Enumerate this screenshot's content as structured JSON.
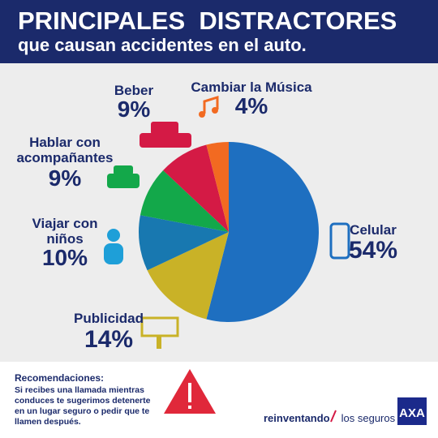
{
  "chart_data": {
    "type": "pie",
    "title": "PRINCIPALES  DISTRACTORES",
    "subtitle": "que causan accidentes en el auto.",
    "categories": [
      "Celular",
      "Publicidad",
      "Viajar con niños",
      "Hablar con acompañantes",
      "Beber",
      "Cambiar la Música"
    ],
    "values": [
      54,
      14,
      10,
      9,
      9,
      4
    ],
    "value_labels": [
      "54%",
      "14%",
      "10%",
      "9%",
      "9%",
      "4%"
    ],
    "colors": [
      "#1e6fc0",
      "#c9b227",
      "#1878b0",
      "#13a84a",
      "#d41a45",
      "#f26a21"
    ],
    "recommendation_title": "Recomendaciones:",
    "recommendation_text": "Si recibes una llamada mientras conduces te sugerimos detenerte en un lugar seguro o pedir que te llamen después.",
    "brand_bold": "reinventando",
    "brand_rest": "los seguros",
    "logo": "AXA"
  }
}
